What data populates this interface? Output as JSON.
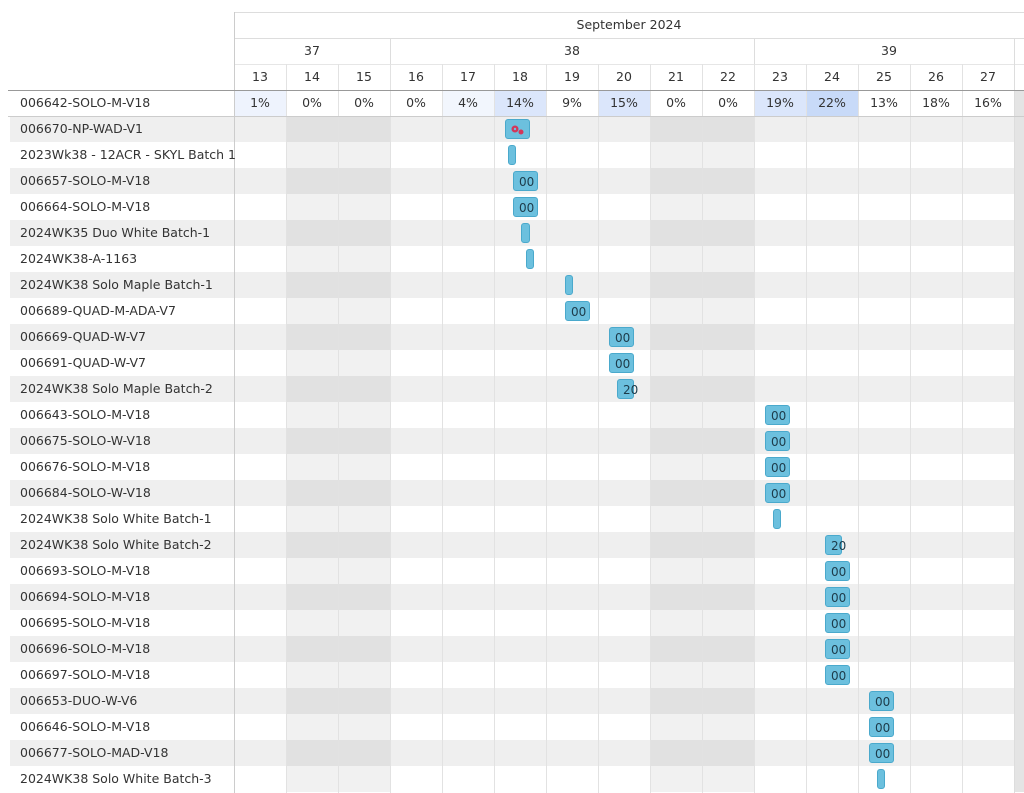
{
  "header": {
    "month": "September 2024",
    "weeks": [
      "37",
      "38",
      "39"
    ],
    "days": [
      "13",
      "14",
      "15",
      "16",
      "17",
      "18",
      "19",
      "20",
      "21",
      "22",
      "23",
      "24",
      "25",
      "26",
      "27"
    ]
  },
  "utilization": {
    "label": "006642-SOLO-M-V18",
    "values": [
      "1%",
      "0%",
      "0%",
      "0%",
      "4%",
      "14%",
      "9%",
      "15%",
      "0%",
      "0%",
      "19%",
      "22%",
      "13%",
      "18%",
      "16%"
    ]
  },
  "rows": [
    {
      "label": "006670-NP-WAD-V1"
    },
    {
      "label": "2023Wk38 - 12ACR - SKYL Batch 1"
    },
    {
      "label": "006657-SOLO-M-V18",
      "bar": "00"
    },
    {
      "label": "006664-SOLO-M-V18",
      "bar": "00"
    },
    {
      "label": "2024WK35 Duo White Batch-1"
    },
    {
      "label": "2024WK38-A-1163"
    },
    {
      "label": "2024WK38 Solo Maple Batch-1"
    },
    {
      "label": "006689-QUAD-M-ADA-V7",
      "bar": "00"
    },
    {
      "label": "006669-QUAD-W-V7",
      "bar": "00"
    },
    {
      "label": "006691-QUAD-W-V7",
      "bar": "00"
    },
    {
      "label": "2024WK38 Solo Maple Batch-2",
      "bar": "20"
    },
    {
      "label": "006643-SOLO-M-V18",
      "bar": "00"
    },
    {
      "label": "006675-SOLO-W-V18",
      "bar": "00"
    },
    {
      "label": "006676-SOLO-M-V18",
      "bar": "00"
    },
    {
      "label": "006684-SOLO-W-V18",
      "bar": "00"
    },
    {
      "label": "2024WK38 Solo White Batch-1"
    },
    {
      "label": "2024WK38 Solo White Batch-2",
      "bar": "20"
    },
    {
      "label": "006693-SOLO-M-V18",
      "bar": "00"
    },
    {
      "label": "006694-SOLO-M-V18",
      "bar": "00"
    },
    {
      "label": "006695-SOLO-M-V18",
      "bar": "00"
    },
    {
      "label": "006696-SOLO-M-V18",
      "bar": "00"
    },
    {
      "label": "006697-SOLO-M-V18",
      "bar": "00"
    },
    {
      "label": "006653-DUO-W-V6",
      "bar": "00"
    },
    {
      "label": "006646-SOLO-M-V18",
      "bar": "00"
    },
    {
      "label": "006677-SOLO-MAD-V18",
      "bar": "00"
    },
    {
      "label": "2024WK38 Solo White Batch-3"
    }
  ]
}
